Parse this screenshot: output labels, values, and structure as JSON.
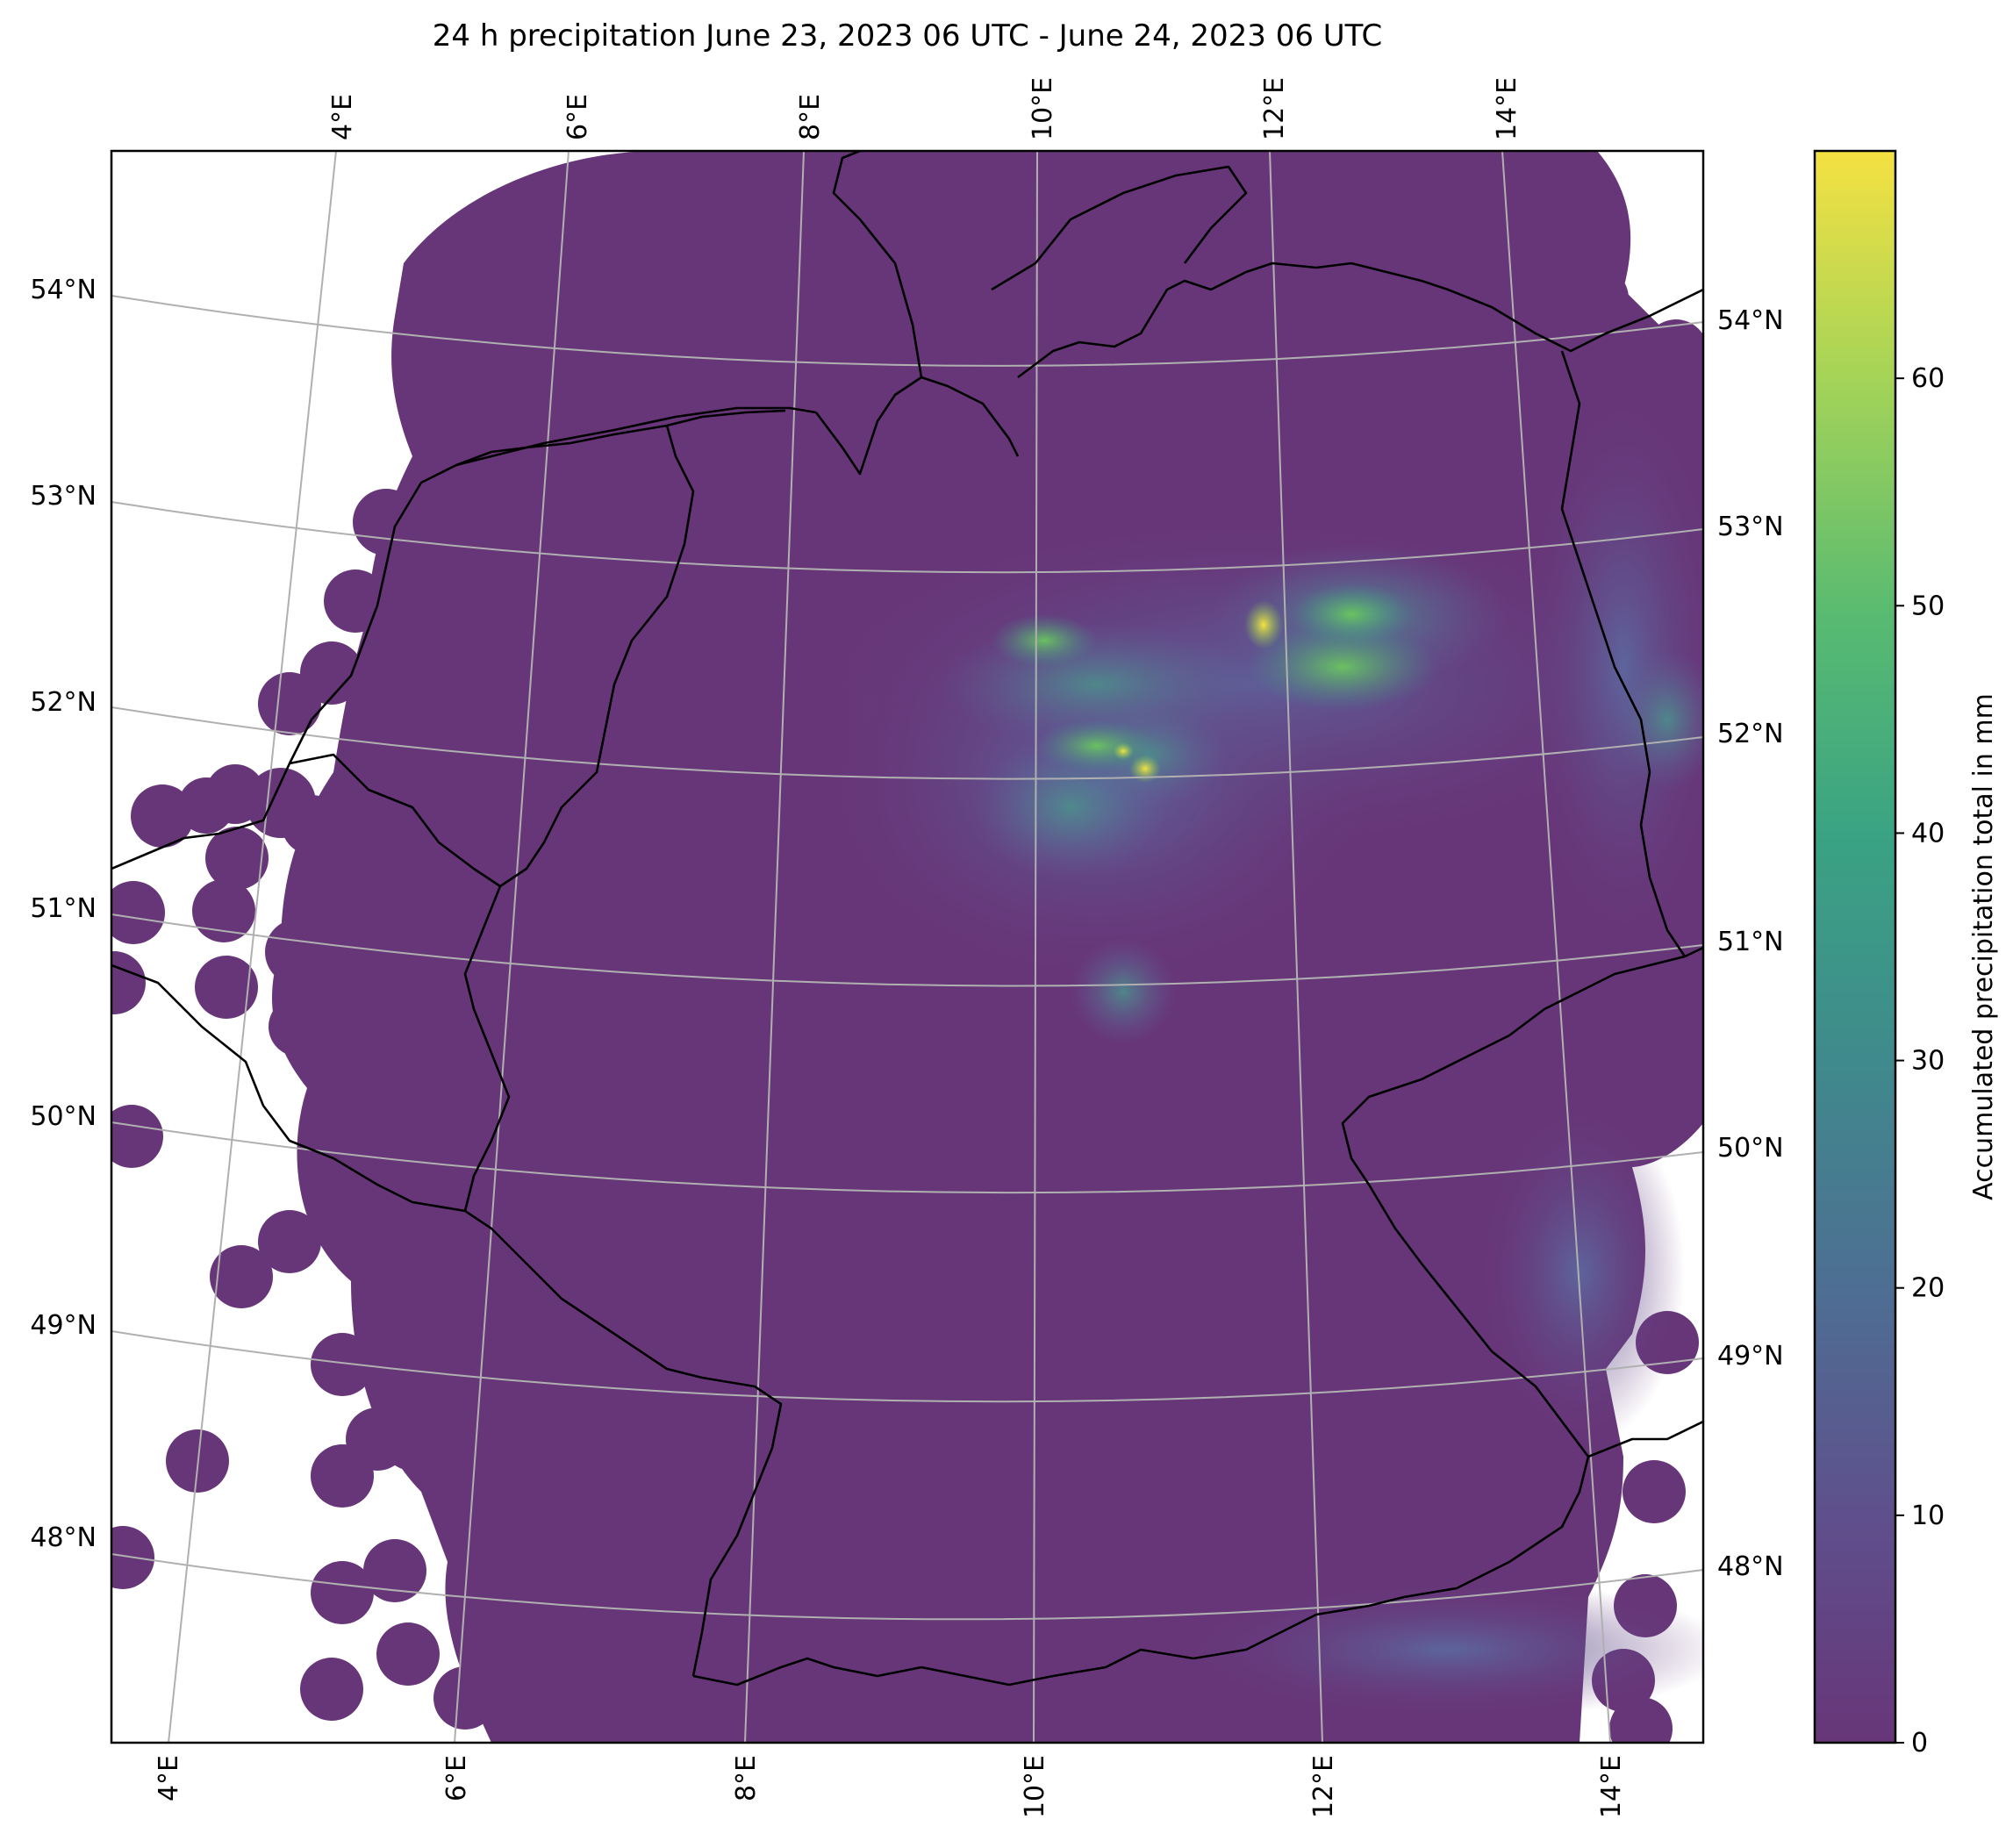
{
  "title": "24 h precipitation June 23, 2023 06 UTC - June 24, 2023 06 UTC",
  "colorbar": {
    "label": "Accumulated precipitation total in mm",
    "ticks": [
      "0",
      "10",
      "20",
      "30",
      "40",
      "50",
      "60"
    ],
    "range": [
      0,
      70
    ],
    "colormap": "viridis"
  },
  "axes": {
    "top_longitudes": [
      "4°E",
      "6°E",
      "8°E",
      "10°E",
      "12°E",
      "14°E"
    ],
    "bottom_longitudes": [
      "4°E",
      "6°E",
      "8°E",
      "10°E",
      "12°E",
      "14°E"
    ],
    "left_latitudes": [
      "54°N",
      "53°N",
      "52°N",
      "51°N",
      "50°N",
      "49°N",
      "48°N"
    ],
    "right_latitudes": [
      "54°N",
      "53°N",
      "52°N",
      "51°N",
      "50°N",
      "49°N",
      "48°N"
    ]
  },
  "map": {
    "region": "Germany and neighbouring countries",
    "projection": "conic",
    "gridlines": true,
    "borders": true,
    "coastlines": true,
    "colors": {
      "background_precip": "#673679",
      "light_precip": "#5f5f98",
      "moderate_precip": "#3f8e8c",
      "heavy_precip": "#5fc560",
      "max_precip": "#f5e142",
      "grid": "#b0b0b0",
      "no_data": "#ffffff"
    }
  }
}
